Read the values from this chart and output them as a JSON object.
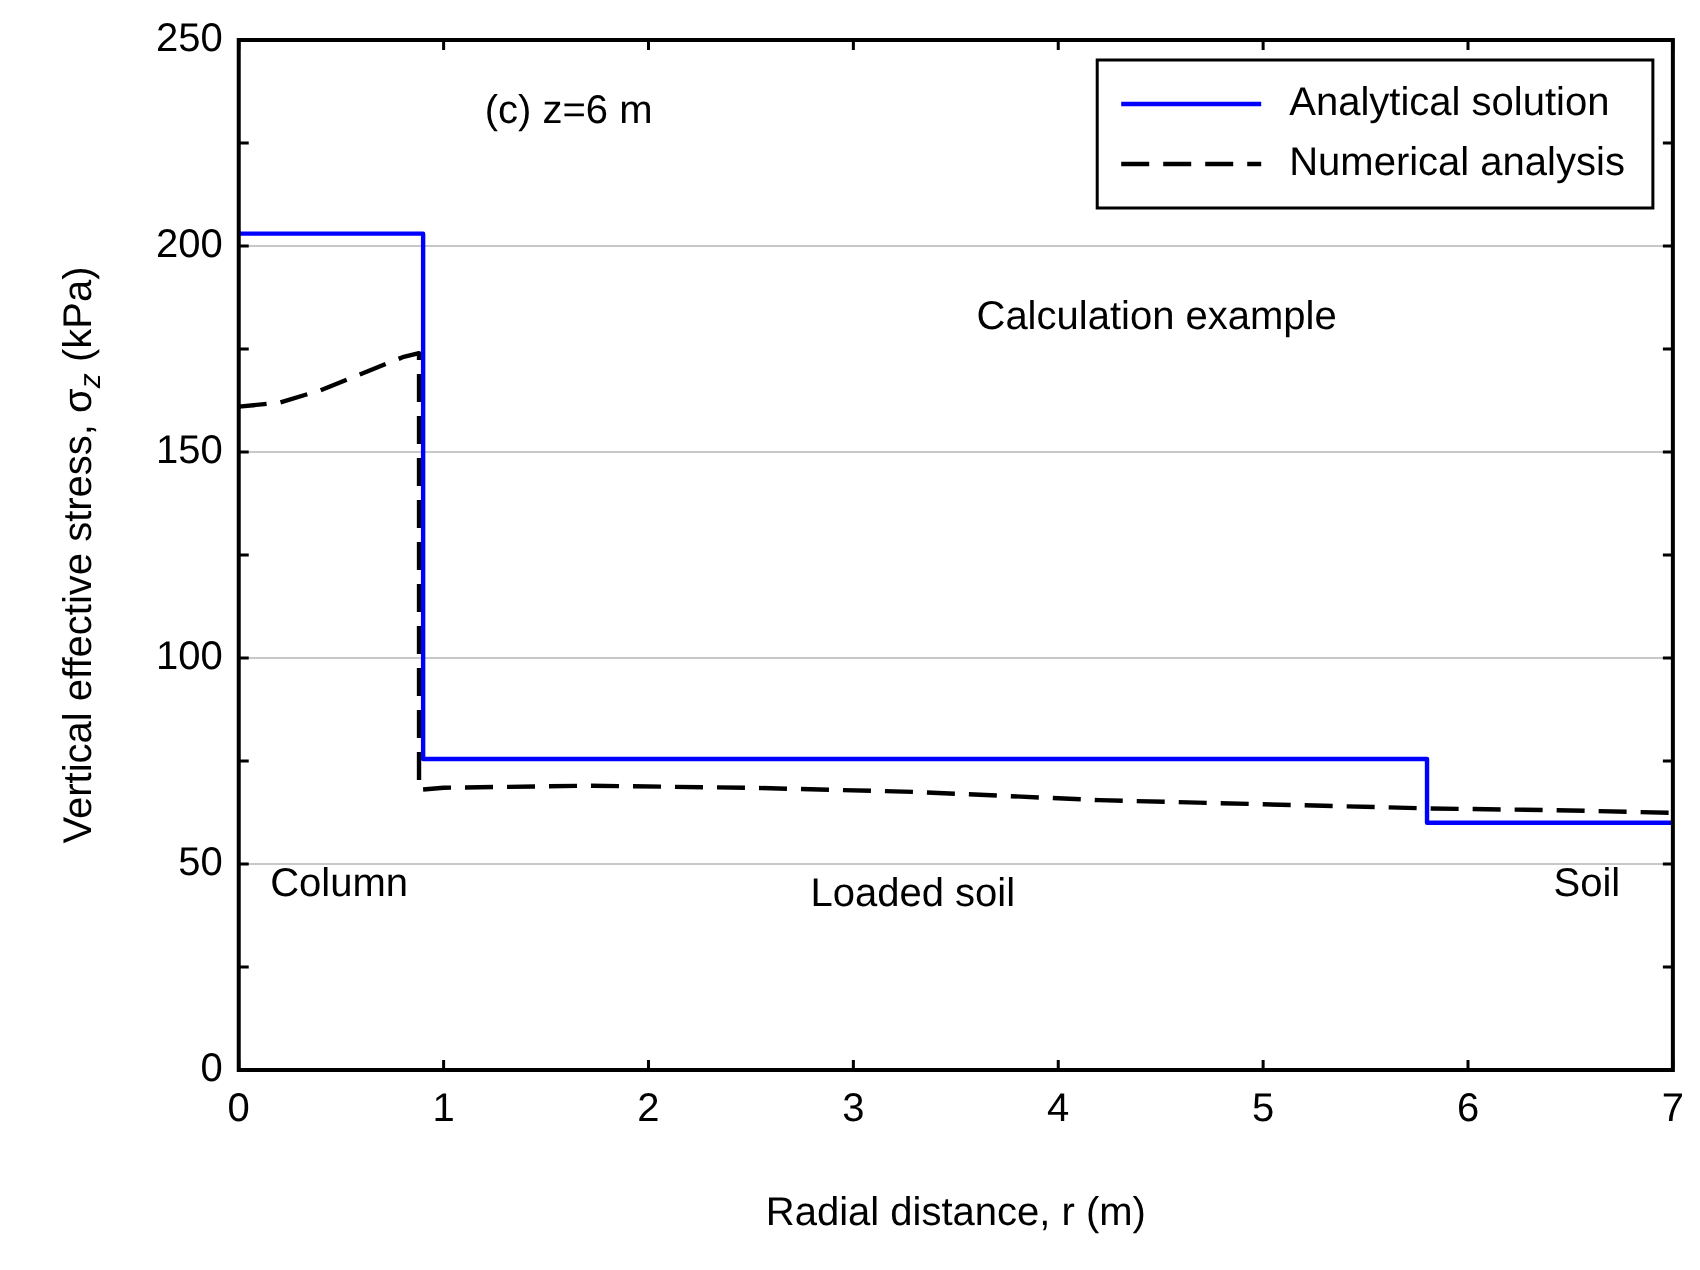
{
  "chart_data": {
    "type": "line",
    "xlabel": "Radial distance, r (m)",
    "ylabel": "Vertical effective stress, σ$_{z}$ (kPa)",
    "xlim": [
      0,
      7
    ],
    "xticks": [
      0,
      1,
      2,
      3,
      4,
      5,
      6,
      7
    ],
    "ylim": [
      0,
      250
    ],
    "yticks": [
      0,
      {
        "value": 25,
        "label": null
      },
      50,
      {
        "value": 75,
        "label": null
      },
      100,
      {
        "value": 125,
        "label": null
      },
      150,
      {
        "value": 175,
        "label": null
      },
      200,
      {
        "value": 225,
        "label": null
      },
      250
    ],
    "grid": "y",
    "legend": "top right",
    "marker": "none",
    "series": [
      {
        "name": "Analytical solution",
        "color": "#0000ff",
        "line_style": "solid",
        "x": [
          0,
          0.9,
          0.9,
          5.8,
          5.8,
          7
        ],
        "values": [
          203,
          203,
          75.5,
          75.5,
          60,
          60
        ]
      },
      {
        "name": "Numerical analysis",
        "color": "#000000",
        "line_style": "dashed",
        "x": [
          0,
          0.2,
          0.4,
          0.6,
          0.8,
          0.88,
          0.88,
          1,
          1.7,
          2.5,
          3.3,
          4.2,
          5,
          5.8,
          6.5,
          7
        ],
        "values": [
          161,
          162,
          165,
          169,
          173,
          174,
          68,
          68.5,
          69,
          68.5,
          67.5,
          65.5,
          64.5,
          63.5,
          63,
          62.4
        ]
      }
    ],
    "annotations": [
      "(c) z=6 m",
      "Calculation example",
      "Column",
      "Loaded soil",
      "Soil"
    ]
  }
}
